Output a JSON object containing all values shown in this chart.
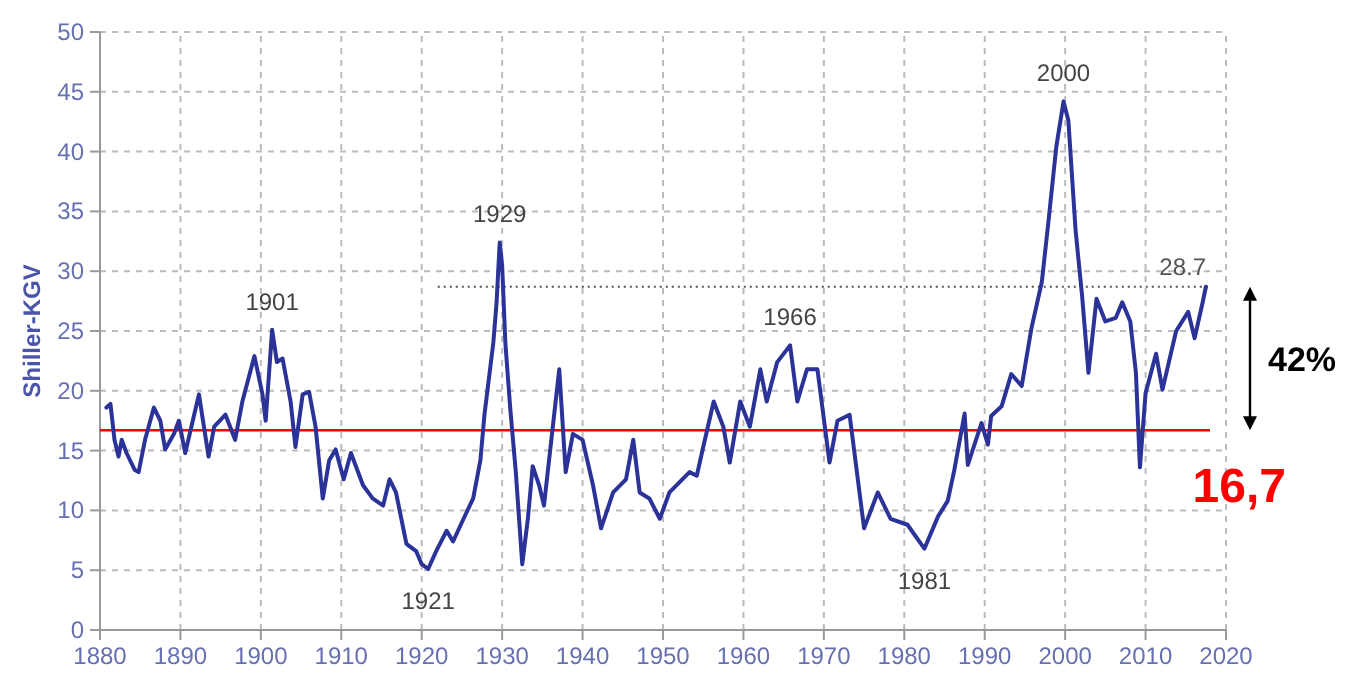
{
  "chart_data": {
    "type": "line",
    "ylabel": "Shiller-KGV",
    "xlim": [
      1880,
      2020
    ],
    "xticks": [
      1880,
      1890,
      1900,
      1910,
      1920,
      1930,
      1940,
      1950,
      1960,
      1970,
      1980,
      1990,
      2000,
      2010,
      2020
    ],
    "ylim": [
      0,
      50
    ],
    "yticks": [
      0,
      5,
      10,
      15,
      20,
      25,
      30,
      35,
      40,
      45,
      50
    ],
    "grid": true,
    "marker": "none",
    "line_style": "solid",
    "series": [
      {
        "color": "#2b3399",
        "x": [
          1880.8,
          1881.3,
          1881.8,
          1882.3,
          1882.7,
          1883.3,
          1884.3,
          1884.8,
          1885.6,
          1886.7,
          1887.5,
          1888.1,
          1889.2,
          1889.8,
          1890.6,
          1892.3,
          1893.5,
          1894.2,
          1895.6,
          1896.8,
          1897.7,
          1899.2,
          1900.2,
          1900.6,
          1901.4,
          1902,
          1902.7,
          1903.7,
          1904.3,
          1905.2,
          1906,
          1906.8,
          1907.7,
          1908.5,
          1909.3,
          1910.3,
          1911.2,
          1912.7,
          1913.9,
          1915.2,
          1916,
          1916.8,
          1918.1,
          1919.3,
          1920,
          1920.8,
          1921.8,
          1923.1,
          1923.9,
          1925.2,
          1926.4,
          1927.3,
          1927.8,
          1928.9,
          1929.3,
          1929.7,
          1930,
          1930.4,
          1931,
          1931.7,
          1932.5,
          1933.2,
          1933.8,
          1934.6,
          1935.2,
          1936.3,
          1937.1,
          1937.9,
          1938.8,
          1940,
          1941.3,
          1942.3,
          1943.8,
          1945.4,
          1946.3,
          1947.1,
          1948.3,
          1949.6,
          1950.8,
          1953.3,
          1954.2,
          1955,
          1956.3,
          1957.5,
          1958.3,
          1959.6,
          1960.8,
          1962.1,
          1962.9,
          1964.2,
          1965.8,
          1966.7,
          1967.9,
          1969.2,
          1970.7,
          1971.7,
          1973.2,
          1975,
          1976.7,
          1978.3,
          1980.4,
          1982.5,
          1984.2,
          1985.4,
          1986.2,
          1987.5,
          1987.9,
          1989.6,
          1990.4,
          1990.8,
          1992.1,
          1993.3,
          1994.6,
          1995.8,
          1997.1,
          1997.9,
          1998.9,
          1999.8,
          2000.4,
          2001.3,
          2002.1,
          2002.9,
          2003.9,
          2005,
          2006.3,
          2007.1,
          2008.1,
          2008.8,
          2009.3,
          2010,
          2011.3,
          2012.1,
          2013.8,
          2015.3,
          2016.1,
          2017.1,
          2017.5
        ],
        "values": [
          18.6,
          18.9,
          15.9,
          14.5,
          15.9,
          14.8,
          13.4,
          13.2,
          15.9,
          18.6,
          17.5,
          15.1,
          16.4,
          17.5,
          14.8,
          19.7,
          14.5,
          17,
          18,
          15.9,
          19.1,
          22.9,
          19.7,
          17.5,
          25.1,
          22.4,
          22.7,
          19.1,
          15.3,
          19.7,
          19.9,
          17,
          11,
          14.2,
          15.1,
          12.6,
          14.8,
          12.1,
          11,
          10.4,
          12.6,
          11.5,
          7.2,
          6.6,
          5.5,
          5.1,
          6.6,
          8.3,
          7.4,
          9.3,
          11,
          14.2,
          18,
          24,
          27.3,
          32.4,
          30.5,
          24,
          18.6,
          13.2,
          5.5,
          9.3,
          13.7,
          12.1,
          10.4,
          17,
          21.8,
          13.2,
          16.4,
          15.9,
          12.1,
          8.5,
          11.5,
          12.6,
          15.9,
          11.5,
          11,
          9.3,
          11.5,
          13.2,
          12.9,
          15.3,
          19.1,
          17,
          14,
          19.1,
          17,
          21.8,
          19.1,
          22.4,
          23.8,
          19.1,
          21.8,
          21.8,
          14,
          17.5,
          18,
          8.5,
          11.5,
          9.3,
          8.8,
          6.8,
          9.5,
          10.8,
          13.3,
          18.1,
          13.8,
          17.3,
          15.5,
          17.9,
          18.7,
          21.4,
          20.4,
          25.2,
          29.1,
          34,
          40.4,
          44.2,
          42.6,
          33.4,
          28,
          21.5,
          27.7,
          25.8,
          26.1,
          27.4,
          25.8,
          21.5,
          13.6,
          19.8,
          23.1,
          20.1,
          25,
          26.6,
          24.4,
          27.4,
          28.7
        ]
      }
    ],
    "ref_lines": [
      {
        "axis": "y",
        "value": 16.7,
        "label": "16,7",
        "color": "#ff0000",
        "line_style": "solid"
      },
      {
        "axis": "y",
        "value": 28.7,
        "label": "28.7",
        "color": "#555555",
        "line_style": "dotted"
      }
    ],
    "annotations": [
      {
        "text": "1901",
        "x": 1901.4,
        "y": 25.1
      },
      {
        "text": "1929",
        "x": 1929.7,
        "y": 32.4
      },
      {
        "text": "1921",
        "x": 1920.8,
        "y": 5.1
      },
      {
        "text": "1966",
        "x": 1965.8,
        "y": 23.8
      },
      {
        "text": "1981",
        "x": 1982.5,
        "y": 6.8
      },
      {
        "text": "2000",
        "x": 1999.8,
        "y": 44.2
      },
      "42%"
    ]
  }
}
